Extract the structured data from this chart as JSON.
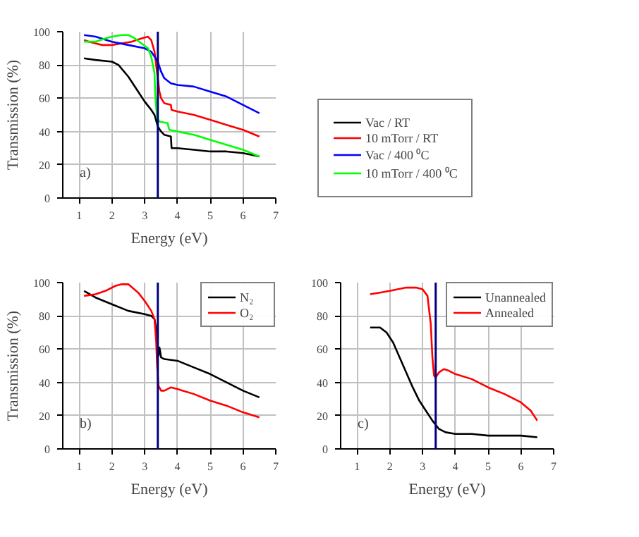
{
  "chart_data": [
    {
      "type": "line",
      "xlabel": "Energy (eV)",
      "ylabel": "Transmission (%)",
      "xlim": [
        0.5,
        7
      ],
      "ylim": [
        0,
        100
      ],
      "xticks": [
        1,
        2,
        3,
        4,
        5,
        6,
        7
      ],
      "yticks": [
        0,
        20,
        40,
        60,
        80,
        100
      ],
      "grid": true,
      "legend": "right",
      "annotations": [
        "a)"
      ],
      "ref_lines": [
        {
          "axis": "x",
          "value": 3.4,
          "color": "#000080"
        }
      ],
      "series": [
        {
          "name": "Vac / RT",
          "color": "#000000",
          "x": [
            1.15,
            1.5,
            2,
            2.2,
            2.5,
            2.8,
            3,
            3.2,
            3.3,
            3.4,
            3.5,
            3.6,
            3.8,
            3.82,
            4,
            4.5,
            5,
            5.5,
            6,
            6.5
          ],
          "values": [
            84,
            83,
            82,
            80,
            73,
            64,
            58,
            53,
            50,
            43,
            40,
            38,
            37,
            30,
            30,
            29,
            28,
            28,
            27,
            25
          ]
        },
        {
          "name": "10 mTorr / RT",
          "color": "#ff0000",
          "x": [
            1.15,
            1.3,
            1.7,
            2,
            2.3,
            2.6,
            2.9,
            3.1,
            3.2,
            3.3,
            3.35,
            3.4,
            3.45,
            3.5,
            3.6,
            3.8,
            3.82,
            4,
            4.5,
            5,
            5.5,
            6,
            6.5
          ],
          "values": [
            95,
            94,
            92,
            92,
            93,
            94,
            96,
            97,
            95,
            88,
            80,
            72,
            64,
            60,
            57,
            56,
            53,
            52,
            50,
            47,
            44,
            41,
            37
          ]
        },
        {
          "name": "Vac / 400 ⁰C",
          "color": "#0000ff",
          "x": [
            1.15,
            1.5,
            2,
            2.5,
            3,
            3.2,
            3.3,
            3.4,
            3.5,
            3.6,
            3.8,
            4,
            4.5,
            5,
            5.5,
            6,
            6.5
          ],
          "values": [
            98,
            97,
            94,
            92,
            90,
            88,
            85,
            82,
            76,
            72,
            69,
            68,
            67,
            64,
            61,
            56,
            51
          ]
        },
        {
          "name": "10 mTorr / 400 ⁰C",
          "color": "#00ff00",
          "x": [
            1.15,
            1.5,
            1.8,
            2,
            2.3,
            2.5,
            2.7,
            2.9,
            3.1,
            3.2,
            3.3,
            3.32,
            3.35,
            3.38,
            3.45,
            3.7,
            3.75,
            4,
            4.5,
            5,
            5.5,
            6,
            6.5
          ],
          "values": [
            94,
            94,
            96,
            97,
            98,
            98,
            96,
            93,
            90,
            85,
            75,
            63,
            55,
            48,
            46,
            45,
            41,
            40,
            38,
            35,
            32,
            29,
            25
          ]
        }
      ]
    },
    {
      "type": "line",
      "xlabel": "Energy (eV)",
      "ylabel": "Transmission (%)",
      "xlim": [
        0.5,
        7
      ],
      "ylim": [
        0,
        100
      ],
      "xticks": [
        1,
        2,
        3,
        4,
        5,
        6,
        7
      ],
      "yticks": [
        0,
        20,
        40,
        60,
        80,
        100
      ],
      "grid": true,
      "legend": "top right",
      "annotations": [
        "b)"
      ],
      "ref_lines": [
        {
          "axis": "x",
          "value": 3.4,
          "color": "#000080"
        }
      ],
      "series": [
        {
          "name": "N₂",
          "color": "#000000",
          "x": [
            1.15,
            1.5,
            2,
            2.5,
            3,
            3.2,
            3.3,
            3.35,
            3.4,
            3.42,
            3.45,
            3.5,
            3.6,
            4,
            4.5,
            5,
            5.5,
            6,
            6.5
          ],
          "values": [
            95,
            91,
            87,
            83,
            81,
            80,
            78,
            72,
            62,
            56,
            61,
            55,
            54,
            53,
            49,
            45,
            40,
            35,
            31
          ]
        },
        {
          "name": "O₂",
          "color": "#ff0000",
          "x": [
            1.15,
            1.5,
            1.8,
            2.1,
            2.3,
            2.5,
            2.8,
            3,
            3.2,
            3.3,
            3.35,
            3.38,
            3.42,
            3.5,
            3.6,
            3.8,
            4,
            4.5,
            5,
            5.5,
            6,
            6.5
          ],
          "values": [
            92,
            93,
            95,
            98,
            99,
            99,
            94,
            89,
            83,
            78,
            65,
            50,
            38,
            35,
            35,
            37,
            36,
            33,
            29,
            26,
            22,
            19
          ]
        }
      ]
    },
    {
      "type": "line",
      "xlabel": "Energy (eV)",
      "xlim": [
        0.5,
        7
      ],
      "ylim": [
        0,
        100
      ],
      "xticks": [
        1,
        2,
        3,
        4,
        5,
        6,
        7
      ],
      "yticks": [
        0,
        20,
        40,
        60,
        80,
        100
      ],
      "grid": true,
      "legend": "top right",
      "annotations": [
        "c)"
      ],
      "ref_lines": [
        {
          "axis": "x",
          "value": 3.4,
          "color": "#000080"
        }
      ],
      "series": [
        {
          "name": "Unannealed",
          "color": "#000000",
          "x": [
            1.4,
            1.7,
            1.9,
            2.1,
            2.3,
            2.5,
            2.7,
            2.9,
            3.1,
            3.3,
            3.5,
            3.7,
            4,
            4.5,
            5,
            5.5,
            6,
            6.5
          ],
          "values": [
            73,
            73,
            70,
            64,
            55,
            46,
            37,
            29,
            23,
            17,
            12,
            10,
            9,
            9,
            8,
            8,
            8,
            7
          ]
        },
        {
          "name": "Annealed",
          "color": "#ff0000",
          "x": [
            1.4,
            1.7,
            2,
            2.5,
            2.8,
            3,
            3.15,
            3.25,
            3.3,
            3.35,
            3.4,
            3.5,
            3.65,
            3.8,
            4,
            4.5,
            5,
            5.5,
            6,
            6.3,
            6.5
          ],
          "values": [
            93,
            94,
            95,
            97,
            97,
            96,
            92,
            75,
            55,
            44,
            43,
            46,
            48,
            47,
            45,
            42,
            37,
            33,
            28,
            23,
            17
          ]
        }
      ]
    }
  ]
}
